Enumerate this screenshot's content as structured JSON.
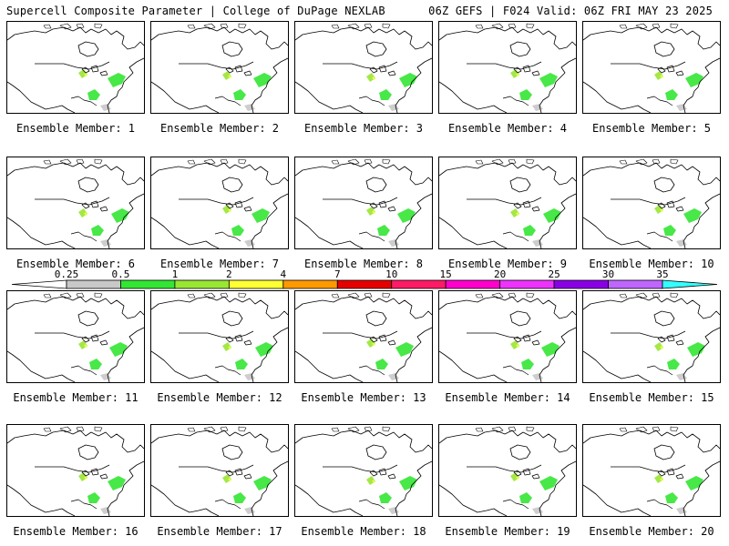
{
  "header": {
    "left": "Supercell Composite Parameter | College of DuPage NEXLAB",
    "right": "06Z GEFS | F024 Valid: 06Z FRI MAY 23 2025"
  },
  "member_label_prefix": "Ensemble Member:",
  "members": [
    {
      "number": "1"
    },
    {
      "number": "2"
    },
    {
      "number": "3"
    },
    {
      "number": "4"
    },
    {
      "number": "5"
    },
    {
      "number": "6"
    },
    {
      "number": "7"
    },
    {
      "number": "8"
    },
    {
      "number": "9"
    },
    {
      "number": "10"
    },
    {
      "number": "11"
    },
    {
      "number": "12"
    },
    {
      "number": "13"
    },
    {
      "number": "14"
    },
    {
      "number": "15"
    },
    {
      "number": "16"
    },
    {
      "number": "17"
    },
    {
      "number": "18"
    },
    {
      "number": "19"
    },
    {
      "number": "20"
    }
  ],
  "colorbar": {
    "labels": [
      "0.25",
      "0.5",
      "1",
      "2",
      "4",
      "7",
      "10",
      "15",
      "20",
      "25",
      "30",
      "35"
    ],
    "colors": [
      "#c8c8c8",
      "#33e633",
      "#99e633",
      "#ffff33",
      "#ff9900",
      "#e60000",
      "#ff1a66",
      "#ff00cc",
      "#ee33ff",
      "#8a00e6",
      "#bf66ff"
    ],
    "under_color": "#ffffff",
    "over_color": "#33ffff"
  }
}
